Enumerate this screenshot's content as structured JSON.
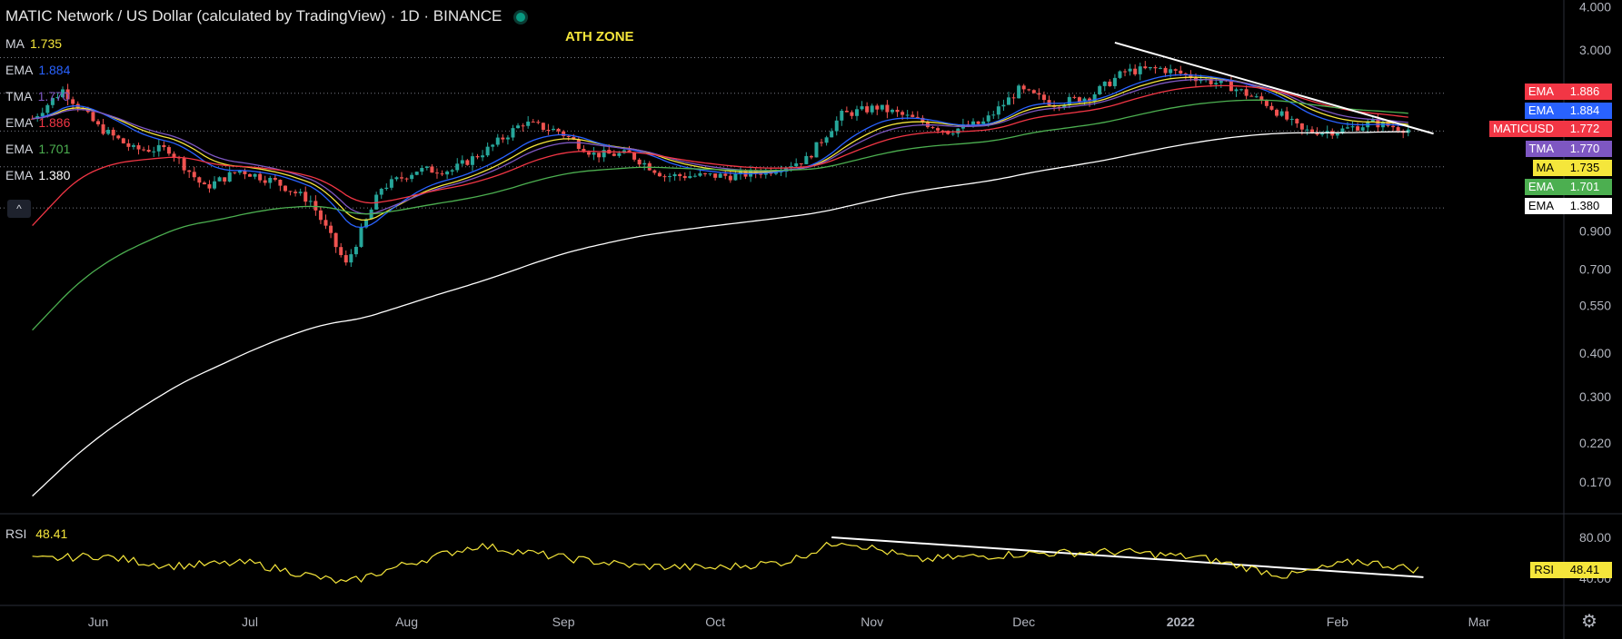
{
  "header": {
    "title": "MATIC Network / US Dollar (calculated by TradingView) · 1D · BINANCE",
    "annotation": "ATH ZONE"
  },
  "legend": [
    {
      "name": "MA",
      "value": "1.735",
      "color": "#f5e63b"
    },
    {
      "name": "EMA",
      "value": "1.884",
      "color": "#2962ff"
    },
    {
      "name": "TMA",
      "value": "1.770",
      "color": "#7e57c2"
    },
    {
      "name": "EMA",
      "value": "1.886",
      "color": "#f23645"
    },
    {
      "name": "EMA",
      "value": "1.701",
      "color": "#4caf50"
    },
    {
      "name": "EMA",
      "value": "1.380",
      "color": "#ffffff"
    }
  ],
  "price_badges": [
    {
      "name": "EMA",
      "value": "1.886",
      "bg": "#f23645",
      "fg": "#ffffff"
    },
    {
      "name": "EMA",
      "value": "1.884",
      "bg": "#2962ff",
      "fg": "#ffffff"
    },
    {
      "name": "MATICUSD",
      "value": "1.772",
      "bg": "#f23645",
      "fg": "#ffffff"
    },
    {
      "name": "TMA",
      "value": "1.770",
      "bg": "#7e57c2",
      "fg": "#ffffff"
    },
    {
      "name": "MA",
      "value": "1.735",
      "bg": "#f5e63b",
      "fg": "#000000"
    },
    {
      "name": "EMA",
      "value": "1.701",
      "bg": "#4caf50",
      "fg": "#ffffff"
    },
    {
      "name": "EMA",
      "value": "1.380",
      "bg": "#ffffff",
      "fg": "#000000"
    }
  ],
  "rsi": {
    "name": "RSI",
    "value": "48.41",
    "color": "#f5e63b"
  },
  "chart_data": {
    "type": "line",
    "scale": "log",
    "y_ticks": [
      "4.000",
      "3.000",
      "0.900",
      "0.700",
      "0.550",
      "0.400",
      "0.300",
      "0.220",
      "0.170"
    ],
    "x_ticks": [
      "Jun",
      "Jul",
      "Aug",
      "Sep",
      "Oct",
      "Nov",
      "Dec",
      "2022",
      "Feb",
      "Mar"
    ],
    "dotted_levels": [
      2.85,
      2.25,
      1.75,
      1.38,
      1.05
    ],
    "price_series": {
      "x": [
        "2021-05-19",
        "2021-05-25",
        "2021-06-01",
        "2021-06-08",
        "2021-06-15",
        "2021-06-22",
        "2021-06-29",
        "2021-07-06",
        "2021-07-13",
        "2021-07-20",
        "2021-07-27",
        "2021-08-03",
        "2021-08-10",
        "2021-08-17",
        "2021-08-24",
        "2021-08-31",
        "2021-09-07",
        "2021-09-14",
        "2021-09-21",
        "2021-09-28",
        "2021-10-05",
        "2021-10-12",
        "2021-10-19",
        "2021-10-26",
        "2021-11-02",
        "2021-11-09",
        "2021-11-16",
        "2021-11-23",
        "2021-11-30",
        "2021-12-07",
        "2021-12-14",
        "2021-12-21",
        "2021-12-28",
        "2022-01-04",
        "2022-01-11",
        "2022-01-18",
        "2022-01-25",
        "2022-02-01",
        "2022-02-08",
        "2022-02-15"
      ],
      "y": [
        1.9,
        2.3,
        1.8,
        1.55,
        1.55,
        1.2,
        1.35,
        1.25,
        1.1,
        0.72,
        1.2,
        1.35,
        1.35,
        1.55,
        1.85,
        1.75,
        1.5,
        1.5,
        1.3,
        1.3,
        1.3,
        1.35,
        1.45,
        1.95,
        2.05,
        1.9,
        1.75,
        1.85,
        2.3,
        2.1,
        2.2,
        2.6,
        2.65,
        2.5,
        2.35,
        2.1,
        1.75,
        1.75,
        1.85,
        1.77
      ]
    },
    "rsi_series": {
      "x": [
        "2021-05-19",
        "2021-06-01",
        "2021-06-15",
        "2021-07-01",
        "2021-07-20",
        "2021-08-01",
        "2021-08-15",
        "2021-09-01",
        "2021-09-15",
        "2021-10-01",
        "2021-10-15",
        "2021-10-26",
        "2021-11-10",
        "2021-12-01",
        "2021-12-20",
        "2022-01-05",
        "2022-01-22",
        "2022-02-05",
        "2022-02-17"
      ],
      "y": [
        58,
        62,
        52,
        55,
        35,
        54,
        72,
        60,
        52,
        50,
        56,
        77,
        58,
        64,
        66,
        60,
        42,
        57,
        48.41
      ]
    },
    "rsi_ticks": [
      "80.00",
      "40.00"
    ],
    "trendlines": [
      {
        "pane": "price",
        "from": [
          "2021-12-19",
          3.15
        ],
        "to": [
          "2022-02-20",
          1.72
        ]
      },
      {
        "pane": "rsi",
        "from": [
          "2021-10-24",
          80
        ],
        "to": [
          "2022-02-18",
          41
        ]
      }
    ]
  }
}
